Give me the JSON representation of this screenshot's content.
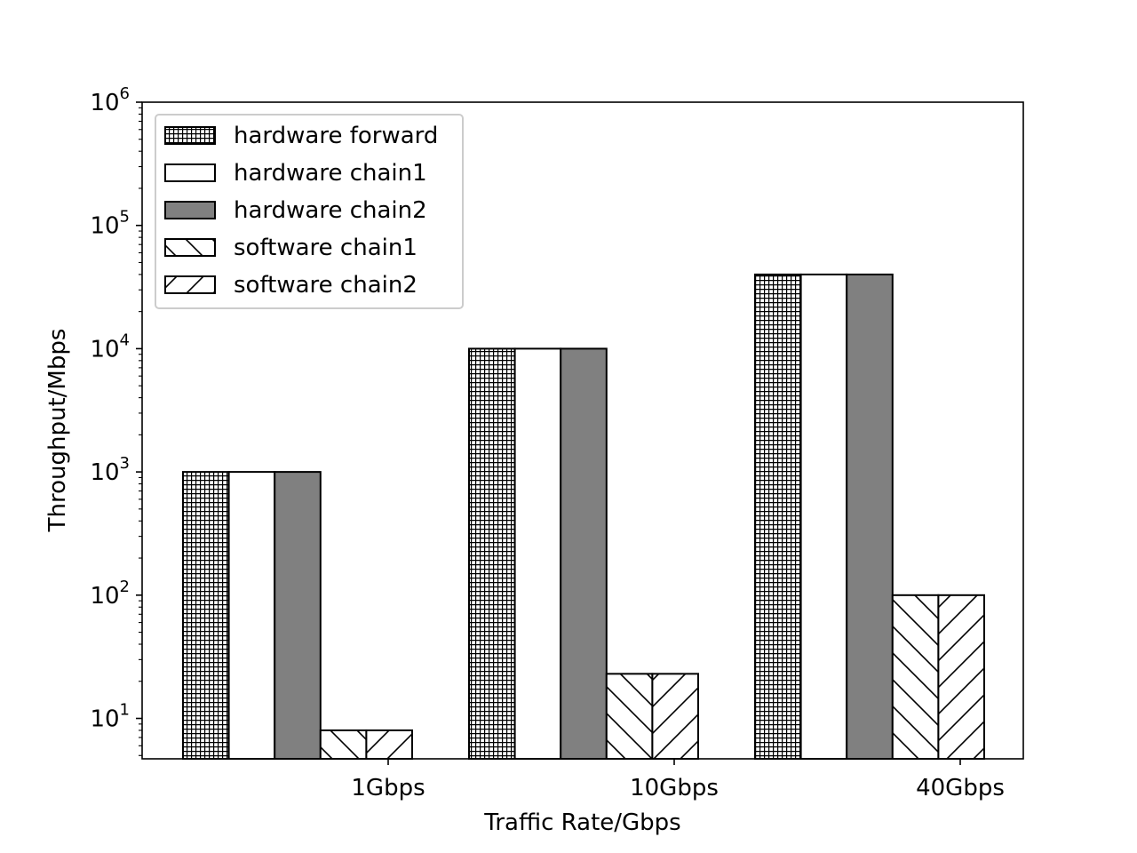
{
  "chart_data": {
    "type": "bar",
    "title": "",
    "xlabel": "Traffic Rate/Gbps",
    "ylabel": "Throughput/Mbps",
    "yscale": "log",
    "ylim": [
      4.7,
      1000000
    ],
    "categories": [
      "1Gbps",
      "10Gbps",
      "40Gbps"
    ],
    "y_tick_labels": [
      {
        "value": 10,
        "base": "10",
        "exp": "1"
      },
      {
        "value": 100,
        "base": "10",
        "exp": "2"
      },
      {
        "value": 1000,
        "base": "10",
        "exp": "3"
      },
      {
        "value": 10000,
        "base": "10",
        "exp": "4"
      },
      {
        "value": 100000,
        "base": "10",
        "exp": "5"
      },
      {
        "value": 1000000,
        "base": "10",
        "exp": "6"
      }
    ],
    "series": [
      {
        "name": "hardware forward",
        "values": [
          1000,
          10000,
          40000
        ],
        "pattern": "grid",
        "color": "#ffffff"
      },
      {
        "name": "hardware chain1",
        "values": [
          1000,
          10000,
          40000
        ],
        "pattern": "none",
        "color": "#ffffff"
      },
      {
        "name": "hardware chain2",
        "values": [
          1000,
          10000,
          40000
        ],
        "pattern": "solid",
        "color": "#808080"
      },
      {
        "name": "software chain1",
        "values": [
          8,
          23,
          100
        ],
        "pattern": "backslash",
        "color": "#ffffff"
      },
      {
        "name": "software chain2",
        "values": [
          8,
          23,
          100
        ],
        "pattern": "slash",
        "color": "#ffffff"
      }
    ],
    "legend": {
      "position": "top-left"
    },
    "grid": false
  }
}
